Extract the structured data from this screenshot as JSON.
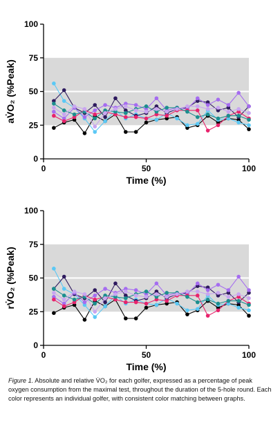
{
  "chart_data": [
    {
      "type": "line",
      "title": "",
      "xlabel": "Time (%)",
      "ylabel": "aV̇O₂ (%Peak)",
      "xlim": [
        0,
        100
      ],
      "ylim": [
        0,
        100
      ],
      "xticks": [
        0,
        50,
        100
      ],
      "yticks": [
        0,
        25,
        50,
        75,
        100
      ],
      "bands": [
        [
          25,
          50
        ],
        [
          50,
          75
        ]
      ],
      "band_color": "#d9d9d9",
      "x": [
        5,
        10,
        15,
        20,
        25,
        30,
        35,
        40,
        45,
        50,
        55,
        60,
        65,
        70,
        75,
        80,
        85,
        90,
        95,
        100
      ],
      "series": [
        {
          "color": "#000000",
          "values": [
            23,
            27,
            29,
            19,
            32,
            28,
            33,
            20,
            20,
            27,
            29,
            30,
            31,
            23,
            25,
            32,
            27,
            30,
            29,
            22
          ]
        },
        {
          "color": "#5bc8f5",
          "values": [
            56,
            43,
            38,
            30,
            20,
            28,
            36,
            30,
            33,
            30,
            29,
            34,
            30,
            25,
            26,
            36,
            29,
            30,
            27,
            25
          ]
        },
        {
          "color": "#2e1a5e",
          "values": [
            43,
            51,
            38,
            34,
            40,
            31,
            45,
            36,
            32,
            34,
            39,
            34,
            37,
            38,
            43,
            42,
            36,
            38,
            31,
            39
          ]
        },
        {
          "color": "#a56cf0",
          "values": [
            35,
            30,
            38,
            31,
            36,
            40,
            38,
            41,
            40,
            37,
            45,
            36,
            38,
            37,
            45,
            40,
            44,
            40,
            49,
            39
          ]
        },
        {
          "color": "#e8236c",
          "values": [
            32,
            28,
            31,
            36,
            33,
            35,
            33,
            31,
            31,
            30,
            33,
            32,
            36,
            36,
            36,
            21,
            25,
            32,
            35,
            30
          ]
        },
        {
          "color": "#1b8e8e",
          "values": [
            41,
            36,
            33,
            35,
            30,
            36,
            35,
            34,
            37,
            39,
            35,
            38,
            38,
            35,
            31,
            33,
            30,
            32,
            32,
            29
          ]
        },
        {
          "color": "#c8a5f0",
          "values": [
            38,
            33,
            39,
            37,
            24,
            34,
            37,
            39,
            36,
            35,
            37,
            35,
            37,
            39,
            39,
            37,
            38,
            35,
            37,
            34
          ]
        }
      ]
    },
    {
      "type": "line",
      "title": "",
      "xlabel": "Time (%)",
      "ylabel": "rV̇O₂ (%Peak)",
      "xlim": [
        0,
        100
      ],
      "ylim": [
        0,
        100
      ],
      "xticks": [
        0,
        50,
        100
      ],
      "yticks": [
        0,
        25,
        50,
        75,
        100
      ],
      "bands": [
        [
          25,
          50
        ],
        [
          50,
          75
        ]
      ],
      "band_color": "#d9d9d9",
      "x": [
        5,
        10,
        15,
        20,
        25,
        30,
        35,
        40,
        45,
        50,
        55,
        60,
        65,
        70,
        75,
        80,
        85,
        90,
        95,
        100
      ],
      "series": [
        {
          "color": "#000000",
          "values": [
            24,
            28,
            30,
            19,
            33,
            29,
            34,
            20,
            20,
            28,
            30,
            31,
            32,
            23,
            26,
            33,
            28,
            31,
            30,
            22
          ]
        },
        {
          "color": "#5bc8f5",
          "values": [
            57,
            42,
            38,
            30,
            21,
            29,
            37,
            31,
            34,
            31,
            30,
            35,
            31,
            26,
            27,
            37,
            30,
            31,
            28,
            26
          ]
        },
        {
          "color": "#2e1a5e",
          "values": [
            42,
            51,
            38,
            35,
            41,
            32,
            46,
            37,
            33,
            35,
            40,
            35,
            38,
            39,
            44,
            43,
            37,
            39,
            32,
            39
          ]
        },
        {
          "color": "#a56cf0",
          "values": [
            36,
            31,
            39,
            32,
            37,
            42,
            39,
            42,
            41,
            38,
            46,
            37,
            39,
            38,
            46,
            41,
            45,
            41,
            51,
            41
          ]
        },
        {
          "color": "#e8236c",
          "values": [
            34,
            29,
            32,
            37,
            34,
            36,
            34,
            32,
            32,
            31,
            34,
            33,
            37,
            37,
            37,
            22,
            26,
            33,
            36,
            31
          ]
        },
        {
          "color": "#1b8e8e",
          "values": [
            42,
            37,
            34,
            36,
            31,
            37,
            36,
            35,
            38,
            40,
            36,
            39,
            39,
            36,
            32,
            34,
            31,
            33,
            33,
            30
          ]
        },
        {
          "color": "#c8a5f0",
          "values": [
            39,
            34,
            40,
            38,
            25,
            35,
            38,
            40,
            37,
            36,
            38,
            36,
            38,
            40,
            40,
            38,
            39,
            36,
            38,
            35
          ]
        }
      ]
    }
  ],
  "caption": {
    "figure_label": "Figure 1.",
    "text": " Absolute and relative V̇O₂ for each golfer, expressed as a percentage of peak oxygen consumption from the maximal test, throughout the duration of the 5-hole round. Each color represents an individual golfer, with consistent color matching between graphs."
  }
}
